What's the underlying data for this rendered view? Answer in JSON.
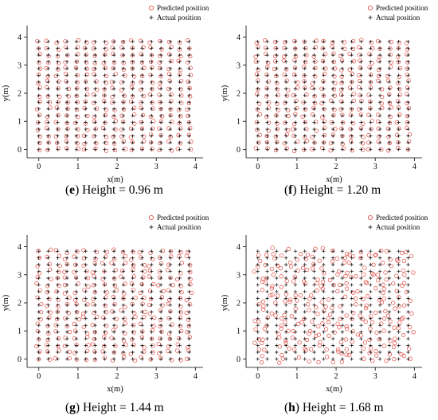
{
  "chart_data": [
    {
      "type": "scatter",
      "panel": "e",
      "caption_label": "e",
      "caption_text": "Height = 0.96 m",
      "xlabel": "x(m)",
      "ylabel": "y(m)",
      "xlim": [
        -0.3,
        4.4
      ],
      "ylim": [
        -0.3,
        4.3
      ],
      "xticks": [
        0,
        1,
        2,
        3,
        4
      ],
      "yticks": [
        0,
        1,
        2,
        3,
        4
      ],
      "legend_placement": "top-right",
      "legend": [
        {
          "label": "Predicted position",
          "marker": "circle",
          "color": "#e0443c"
        },
        {
          "label": "Actual position",
          "marker": "plus",
          "color": "#000000"
        }
      ],
      "grid": {
        "x_start": 0.0,
        "x_step": 0.24,
        "x_count": 17,
        "y_start": 0.0,
        "y_step": 0.24,
        "y_count": 17
      },
      "prediction_error": 0.05
    },
    {
      "type": "scatter",
      "panel": "f",
      "caption_label": "f",
      "caption_text": "Height = 1.20 m",
      "xlabel": "x(m)",
      "ylabel": "y(m)",
      "xlim": [
        -0.3,
        4.4
      ],
      "ylim": [
        -0.3,
        4.3
      ],
      "xticks": [
        0,
        1,
        2,
        3,
        4
      ],
      "yticks": [
        0,
        1,
        2,
        3,
        4
      ],
      "legend_placement": "top-right",
      "legend": [
        {
          "label": "Predicted position",
          "marker": "circle",
          "color": "#e0443c"
        },
        {
          "label": "Actual position",
          "marker": "plus",
          "color": "#000000"
        }
      ],
      "grid": {
        "x_start": 0.0,
        "x_step": 0.24,
        "x_count": 17,
        "y_start": 0.0,
        "y_step": 0.24,
        "y_count": 17
      },
      "prediction_error": 0.06
    },
    {
      "type": "scatter",
      "panel": "g",
      "caption_label": "g",
      "caption_text": "Height = 1.44 m",
      "xlabel": "x(m)",
      "ylabel": "y(m)",
      "xlim": [
        -0.3,
        4.4
      ],
      "ylim": [
        -0.3,
        4.3
      ],
      "xticks": [
        0,
        1,
        2,
        3,
        4
      ],
      "yticks": [
        0,
        1,
        2,
        3,
        4
      ],
      "legend_placement": "top-right",
      "legend": [
        {
          "label": "Predicted position",
          "marker": "circle",
          "color": "#e0443c"
        },
        {
          "label": "Actual position",
          "marker": "plus",
          "color": "#000000"
        }
      ],
      "grid": {
        "x_start": 0.0,
        "x_step": 0.24,
        "x_count": 17,
        "y_start": 0.0,
        "y_step": 0.24,
        "y_count": 17
      },
      "prediction_error": 0.07
    },
    {
      "type": "scatter",
      "panel": "h",
      "caption_label": "h",
      "caption_text": "Height = 1.68 m",
      "xlabel": "x(m)",
      "ylabel": "y(m)",
      "xlim": [
        -0.3,
        4.4
      ],
      "ylim": [
        -0.3,
        4.3
      ],
      "xticks": [
        0,
        1,
        2,
        3,
        4
      ],
      "yticks": [
        0,
        1,
        2,
        3,
        4
      ],
      "legend_placement": "top-right",
      "legend": [
        {
          "label": "Predicted position",
          "marker": "circle",
          "color": "#e0443c"
        },
        {
          "label": "Actual position",
          "marker": "plus",
          "color": "#000000"
        }
      ],
      "grid": {
        "x_start": 0.0,
        "x_step": 0.24,
        "x_count": 17,
        "y_start": 0.0,
        "y_step": 0.24,
        "y_count": 17
      },
      "prediction_error": 0.14
    }
  ]
}
